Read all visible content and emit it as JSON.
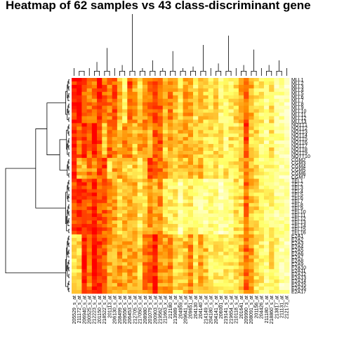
{
  "chart_data": {
    "type": "heatmap",
    "title": "Heatmap of 62 samples vs 43 class-discriminant gene",
    "n_rows": 62,
    "n_cols": 43,
    "colormap": [
      "#ff0000",
      "#ff8c00",
      "#ffff66",
      "#ffffe0"
    ],
    "column_labels": [
      "205529_s_at",
      "211172_s_at",
      "206940_s_at",
      "200525_s_at",
      "212223_s_at",
      "201150_s_at",
      "218522_s_at",
      "201113_at",
      "206130_s_at",
      "208499_s_at",
      "209556_s_at",
      "206453_s_at",
      "212705_s_at",
      "217050_s_at",
      "208980_s_at",
      "201079_s_at",
      "200903_s_at",
      "219562_s_at",
      "211663_x_at",
      "212180_at",
      "213989_s_at",
      "204959_at",
      "209641_s_at",
      "209651_at",
      "204130_at",
      "204140_at",
      "214149_s_at",
      "204180_s_at",
      "204141_x_at",
      "206001_at",
      "219141_s_at",
      "219654_s_at",
      "210118_s_at",
      "201641_at",
      "209990_s_at",
      "208091_s_at",
      "201156_at",
      "204426_at",
      "211180_s_at",
      "218860_s_at",
      "213817_at",
      "211131_at",
      "212173_at"
    ],
    "row_labels": [
      "MLL1",
      "MLL2",
      "MLL3",
      "MLL4",
      "MLL5",
      "MLL6",
      "MLL7",
      "MLL8",
      "MLL9",
      "MLL10",
      "MLL11",
      "MLL12",
      "MLL13",
      "NOTT1",
      "NOTT2",
      "NOTT3",
      "NOTT4",
      "NOTT5",
      "NOTT6",
      "NOTT7",
      "NOTT8",
      "NOTT9",
      "NOTT10",
      "CGM2",
      "CGM3",
      "CGM4",
      "CGM5",
      "CGM6",
      "CGM7",
      "TEL1",
      "TEL2",
      "TEL3",
      "TEL4",
      "TEL5",
      "TEL6",
      "TEL7",
      "TEL8",
      "TEL9",
      "TEL10",
      "TEL11",
      "TEL12",
      "TEL13",
      "TEL14",
      "TEL15",
      "TEL16",
      "E2A1",
      "E2A2",
      "E2A3",
      "E2A4",
      "E2A5",
      "E2A6",
      "E2A7",
      "E2A8",
      "E2A9",
      "E2A10",
      "E2A11",
      "E2A12",
      "E2A13",
      "E2A14",
      "E2A15",
      "E2A16",
      "E2A17"
    ],
    "row_groups": [
      {
        "name": "MLL",
        "start": 0,
        "end": 13
      },
      {
        "name": "NOTT",
        "start": 13,
        "end": 23
      },
      {
        "name": "CGM",
        "start": 23,
        "end": 29
      },
      {
        "name": "TEL",
        "start": 29,
        "end": 45
      },
      {
        "name": "E2A",
        "start": 45,
        "end": 62
      }
    ],
    "column_dendrogram": [
      [
        1,
        2,
        0.03
      ],
      [
        0,
        44,
        0.05
      ],
      [
        4,
        5,
        0.03
      ],
      [
        3,
        46,
        0.05
      ],
      [
        45,
        47,
        0.09
      ],
      [
        6,
        7,
        0.03
      ],
      [
        8,
        49,
        0.05
      ],
      [
        9,
        10,
        0.03
      ],
      [
        50,
        51,
        0.07
      ],
      [
        48,
        52,
        0.18
      ],
      [
        11,
        12,
        0.03
      ],
      [
        13,
        14,
        0.03
      ],
      [
        54,
        55,
        0.05
      ],
      [
        15,
        16,
        0.03
      ],
      [
        17,
        18,
        0.03
      ],
      [
        57,
        58,
        0.05
      ],
      [
        56,
        59,
        0.1
      ],
      [
        19,
        20,
        0.03
      ],
      [
        21,
        22,
        0.03
      ],
      [
        61,
        62,
        0.05
      ],
      [
        23,
        24,
        0.03
      ],
      [
        63,
        64,
        0.06
      ],
      [
        60,
        65,
        0.16
      ],
      [
        25,
        26,
        0.03
      ],
      [
        27,
        67,
        0.05
      ],
      [
        28,
        29,
        0.03
      ],
      [
        68,
        69,
        0.08
      ],
      [
        66,
        70,
        0.2
      ],
      [
        30,
        31,
        0.03
      ],
      [
        32,
        72,
        0.05
      ],
      [
        33,
        34,
        0.03
      ],
      [
        73,
        74,
        0.07
      ],
      [
        35,
        36,
        0.03
      ],
      [
        37,
        76,
        0.05
      ],
      [
        38,
        39,
        0.03
      ],
      [
        77,
        78,
        0.07
      ],
      [
        40,
        41,
        0.03
      ],
      [
        42,
        80,
        0.05
      ],
      [
        79,
        81,
        0.1
      ],
      [
        75,
        82,
        0.17
      ],
      [
        71,
        83,
        0.26
      ],
      [
        53,
        84,
        0.4
      ]
    ],
    "row_dendrogram": [
      [
        0,
        1,
        0.01
      ],
      [
        2,
        3,
        0.01
      ],
      [
        62,
        63,
        0.02
      ],
      [
        4,
        5,
        0.01
      ],
      [
        6,
        65,
        0.02
      ],
      [
        64,
        66,
        0.03
      ],
      [
        7,
        8,
        0.01
      ],
      [
        9,
        10,
        0.01
      ],
      [
        68,
        69,
        0.02
      ],
      [
        11,
        12,
        0.01
      ],
      [
        70,
        71,
        0.03
      ],
      [
        67,
        72,
        0.05
      ],
      [
        13,
        14,
        0.01
      ],
      [
        15,
        16,
        0.01
      ],
      [
        74,
        75,
        0.02
      ],
      [
        17,
        18,
        0.01
      ],
      [
        19,
        20,
        0.01
      ],
      [
        77,
        78,
        0.02
      ],
      [
        21,
        22,
        0.01
      ],
      [
        79,
        80,
        0.03
      ],
      [
        76,
        81,
        0.04
      ],
      [
        23,
        24,
        0.01
      ],
      [
        25,
        26,
        0.01
      ],
      [
        83,
        84,
        0.02
      ],
      [
        27,
        28,
        0.01
      ],
      [
        85,
        86,
        0.03
      ],
      [
        82,
        87,
        0.13
      ],
      [
        29,
        30,
        0.01
      ],
      [
        31,
        32,
        0.01
      ],
      [
        89,
        90,
        0.02
      ],
      [
        33,
        34,
        0.01
      ],
      [
        35,
        92,
        0.02
      ],
      [
        91,
        93,
        0.03
      ],
      [
        36,
        37,
        0.01
      ],
      [
        38,
        39,
        0.01
      ],
      [
        95,
        96,
        0.02
      ],
      [
        40,
        41,
        0.01
      ],
      [
        42,
        98,
        0.02
      ],
      [
        97,
        99,
        0.03
      ],
      [
        43,
        44,
        0.01
      ],
      [
        100,
        101,
        0.04
      ],
      [
        94,
        102,
        0.05
      ],
      [
        73,
        88,
        0.3
      ],
      [
        103,
        104,
        0.45
      ],
      [
        45,
        46,
        0.01
      ],
      [
        47,
        48,
        0.01
      ],
      [
        106,
        107,
        0.02
      ],
      [
        49,
        50,
        0.01
      ],
      [
        51,
        109,
        0.02
      ],
      [
        108,
        110,
        0.03
      ],
      [
        52,
        53,
        0.01
      ],
      [
        54,
        55,
        0.01
      ],
      [
        112,
        113,
        0.02
      ],
      [
        56,
        57,
        0.01
      ],
      [
        114,
        115,
        0.03
      ],
      [
        111,
        116,
        0.04
      ],
      [
        58,
        59,
        0.01
      ],
      [
        60,
        61,
        0.01
      ],
      [
        118,
        119,
        0.02
      ],
      [
        117,
        120,
        0.05
      ],
      [
        105,
        121,
        0.85
      ]
    ],
    "col_base": [
      0.1,
      0.15,
      0.12,
      0.25,
      0.05,
      0.1,
      0.2,
      0.3,
      0.25,
      0.35,
      0.4,
      0.3,
      0.35,
      0.45,
      0.3,
      0.2,
      0.15,
      0.25,
      0.4,
      0.35,
      0.45,
      0.5,
      0.4,
      0.35,
      0.55,
      0.45,
      0.5,
      0.6,
      0.55,
      0.65,
      0.7,
      0.6,
      0.55,
      0.5,
      0.2,
      0.45,
      0.55,
      0.65,
      0.7,
      0.6,
      0.75,
      0.8,
      0.85
    ],
    "group_effects": {
      "MLL": [
        0,
        -0.15,
        0.1,
        0.05,
        0.25,
        -0.05,
        0.05,
        0,
        -0.05,
        0.1,
        0.25,
        -0.1,
        0.05,
        0.15,
        0.05,
        0.1,
        0,
        -0.05,
        0.05,
        -0.05,
        0.05,
        0.1,
        0,
        0.05,
        0.1,
        0.05,
        0.05,
        0,
        -0.05,
        0.05,
        0,
        0.05,
        0,
        -0.1,
        0.05,
        0,
        0.05,
        0,
        0.05,
        0,
        0.05,
        0,
        0.05
      ],
      "NOTT": [
        -0.05,
        0.1,
        -0.05,
        0.05,
        -0.05,
        0.1,
        0.3,
        -0.1,
        0.05,
        0.15,
        -0.1,
        0.05,
        0.2,
        -0.05,
        0.1,
        0.25,
        0.05,
        -0.05,
        0.15,
        0,
        0.1,
        -0.05,
        0.05,
        0.1,
        -0.05,
        0.05,
        0.1,
        0,
        0.05,
        -0.05,
        0.05,
        0,
        0.1,
        0.05,
        -0.05,
        0.1,
        0,
        0.05,
        0.1,
        0,
        0.05,
        0,
        0.05
      ],
      "CGM": [
        0.05,
        0.3,
        0.35,
        0.05,
        0.3,
        0.05,
        -0.05,
        0.35,
        0.15,
        0.05,
        0.1,
        0.3,
        0.15,
        0.25,
        0.2,
        -0.1,
        0.1,
        0.05,
        -0.05,
        0.1,
        0.05,
        0,
        0.1,
        0.05,
        0,
        -0.05,
        0.05,
        0.1,
        0,
        0.05,
        -0.1,
        0.05,
        0,
        0.05,
        0.1,
        0,
        0.05,
        0.05,
        0,
        0.05,
        0,
        0.05,
        0
      ],
      "TEL": [
        0.05,
        -0.05,
        0.05,
        -0.05,
        0,
        0.1,
        0,
        0.05,
        0.15,
        0.2,
        0.05,
        0.1,
        0.1,
        0.2,
        0.25,
        0.15,
        0.3,
        0.1,
        0.2,
        0.3,
        0.2,
        0.35,
        0.25,
        0.3,
        0.2,
        0.35,
        0.3,
        0.1,
        0.2,
        0.25,
        0.1,
        0.15,
        0.05,
        0.1,
        0.05,
        0.05,
        0,
        0.05,
        0,
        0.1,
        0.05,
        0,
        -0.05
      ],
      "E2A": [
        0.5,
        0.4,
        -0.1,
        0.05,
        -0.05,
        0.05,
        0,
        0.15,
        0.2,
        0,
        0.05,
        0.1,
        0.05,
        0.1,
        0,
        0.05,
        -0.05,
        0.1,
        0,
        -0.05,
        0.1,
        0.05,
        0.1,
        0,
        0.05,
        -0.05,
        0,
        0.05,
        0.1,
        0,
        -0.05,
        0.05,
        0.05,
        0,
        0.05,
        -0.1,
        0.05,
        0,
        0.05,
        0,
        -0.05,
        0.05,
        0
      ]
    }
  }
}
